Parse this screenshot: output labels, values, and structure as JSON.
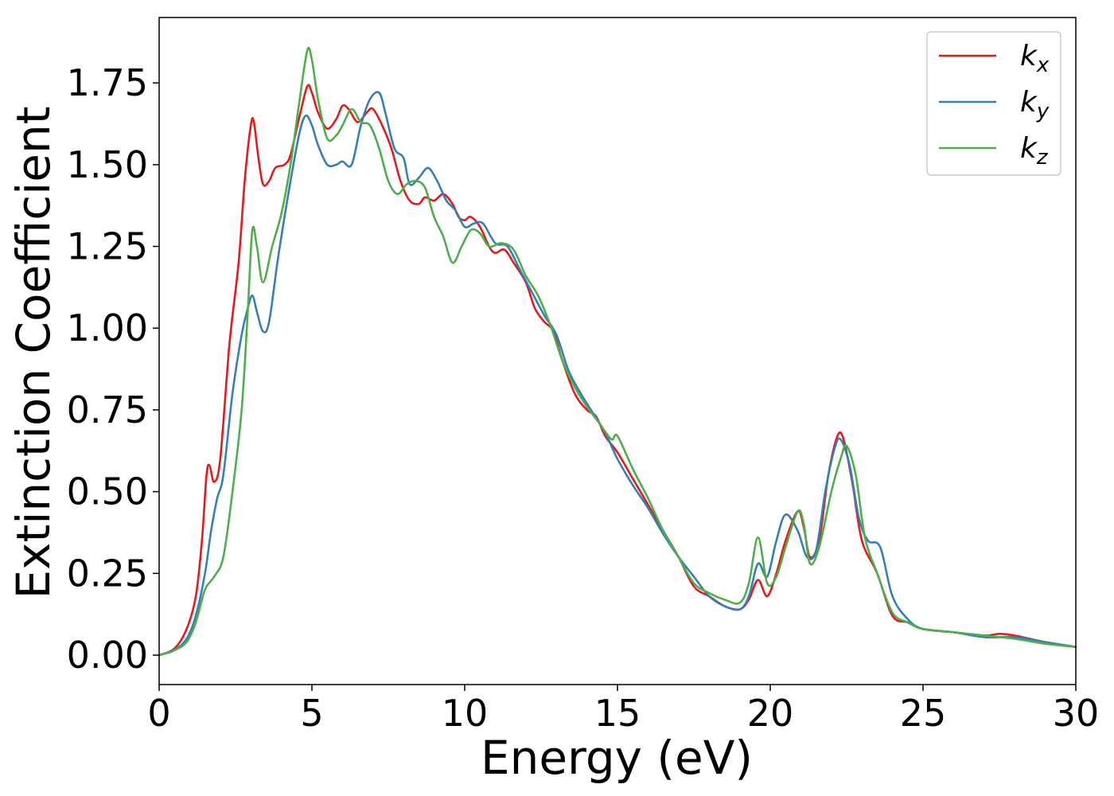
{
  "chart_data": {
    "type": "line",
    "xlabel": "Energy (eV)",
    "ylabel": "Extinction Coefficient",
    "xlim": [
      0,
      30
    ],
    "ylim": [
      -0.09,
      1.95
    ],
    "xticks": [
      0,
      5,
      10,
      15,
      20,
      25,
      30
    ],
    "xtick_labels": [
      "0",
      "5",
      "10",
      "15",
      "20",
      "25",
      "30"
    ],
    "yticks": [
      0.0,
      0.25,
      0.5,
      0.75,
      1.0,
      1.25,
      1.5,
      1.75
    ],
    "ytick_labels": [
      "0.00",
      "0.25",
      "0.50",
      "0.75",
      "1.00",
      "1.25",
      "1.50",
      "1.75"
    ],
    "grid": false,
    "legend_position": "top-right",
    "series": [
      {
        "name": "k",
        "subscript": "x",
        "color": "#e41a1c",
        "points": [
          [
            0,
            0.0
          ],
          [
            0.5,
            0.02
          ],
          [
            0.9,
            0.08
          ],
          [
            1.2,
            0.18
          ],
          [
            1.4,
            0.35
          ],
          [
            1.55,
            0.55
          ],
          [
            1.65,
            0.58
          ],
          [
            1.8,
            0.53
          ],
          [
            2.0,
            0.6
          ],
          [
            2.3,
            0.95
          ],
          [
            2.6,
            1.2
          ],
          [
            2.8,
            1.45
          ],
          [
            3.0,
            1.62
          ],
          [
            3.1,
            1.63
          ],
          [
            3.25,
            1.52
          ],
          [
            3.4,
            1.44
          ],
          [
            3.6,
            1.45
          ],
          [
            3.8,
            1.49
          ],
          [
            4.1,
            1.5
          ],
          [
            4.3,
            1.53
          ],
          [
            4.6,
            1.65
          ],
          [
            4.85,
            1.74
          ],
          [
            5.0,
            1.72
          ],
          [
            5.2,
            1.66
          ],
          [
            5.5,
            1.61
          ],
          [
            5.8,
            1.64
          ],
          [
            6.0,
            1.68
          ],
          [
            6.2,
            1.67
          ],
          [
            6.5,
            1.63
          ],
          [
            6.8,
            1.66
          ],
          [
            7.0,
            1.67
          ],
          [
            7.3,
            1.62
          ],
          [
            7.6,
            1.55
          ],
          [
            7.9,
            1.45
          ],
          [
            8.2,
            1.39
          ],
          [
            8.5,
            1.38
          ],
          [
            8.7,
            1.4
          ],
          [
            9.0,
            1.39
          ],
          [
            9.3,
            1.41
          ],
          [
            9.6,
            1.38
          ],
          [
            9.8,
            1.34
          ],
          [
            10.0,
            1.33
          ],
          [
            10.2,
            1.34
          ],
          [
            10.5,
            1.31
          ],
          [
            10.8,
            1.25
          ],
          [
            11.0,
            1.23
          ],
          [
            11.3,
            1.24
          ],
          [
            11.6,
            1.2
          ],
          [
            12.0,
            1.14
          ],
          [
            12.3,
            1.06
          ],
          [
            12.6,
            1.02
          ],
          [
            12.9,
            0.99
          ],
          [
            13.2,
            0.9
          ],
          [
            13.6,
            0.8
          ],
          [
            14.0,
            0.75
          ],
          [
            14.3,
            0.73
          ],
          [
            14.6,
            0.67
          ],
          [
            15.0,
            0.62
          ],
          [
            15.5,
            0.54
          ],
          [
            16.0,
            0.46
          ],
          [
            16.5,
            0.38
          ],
          [
            17.0,
            0.3
          ],
          [
            17.5,
            0.21
          ],
          [
            18.0,
            0.18
          ],
          [
            18.5,
            0.15
          ],
          [
            19.0,
            0.14
          ],
          [
            19.3,
            0.17
          ],
          [
            19.6,
            0.23
          ],
          [
            19.9,
            0.18
          ],
          [
            20.2,
            0.25
          ],
          [
            20.5,
            0.35
          ],
          [
            20.9,
            0.44
          ],
          [
            21.1,
            0.39
          ],
          [
            21.3,
            0.3
          ],
          [
            21.6,
            0.35
          ],
          [
            21.9,
            0.55
          ],
          [
            22.2,
            0.67
          ],
          [
            22.4,
            0.66
          ],
          [
            22.7,
            0.52
          ],
          [
            23.0,
            0.35
          ],
          [
            23.5,
            0.25
          ],
          [
            24.0,
            0.12
          ],
          [
            24.5,
            0.1
          ],
          [
            25.0,
            0.08
          ],
          [
            26.0,
            0.07
          ],
          [
            27.0,
            0.06
          ],
          [
            27.5,
            0.065
          ],
          [
            28.0,
            0.06
          ],
          [
            29.0,
            0.04
          ],
          [
            30.0,
            0.025
          ]
        ]
      },
      {
        "name": "k",
        "subscript": "y",
        "color": "#377eb8",
        "points": [
          [
            0,
            0.0
          ],
          [
            0.5,
            0.015
          ],
          [
            0.9,
            0.05
          ],
          [
            1.2,
            0.12
          ],
          [
            1.5,
            0.25
          ],
          [
            1.7,
            0.38
          ],
          [
            1.9,
            0.48
          ],
          [
            2.1,
            0.55
          ],
          [
            2.4,
            0.8
          ],
          [
            2.7,
            0.98
          ],
          [
            2.9,
            1.06
          ],
          [
            3.05,
            1.1
          ],
          [
            3.2,
            1.05
          ],
          [
            3.4,
            0.99
          ],
          [
            3.6,
            1.02
          ],
          [
            3.9,
            1.22
          ],
          [
            4.3,
            1.45
          ],
          [
            4.6,
            1.6
          ],
          [
            4.8,
            1.65
          ],
          [
            5.0,
            1.62
          ],
          [
            5.2,
            1.56
          ],
          [
            5.5,
            1.5
          ],
          [
            5.8,
            1.5
          ],
          [
            6.0,
            1.51
          ],
          [
            6.3,
            1.5
          ],
          [
            6.6,
            1.62
          ],
          [
            6.9,
            1.7
          ],
          [
            7.2,
            1.72
          ],
          [
            7.4,
            1.66
          ],
          [
            7.7,
            1.55
          ],
          [
            8.0,
            1.52
          ],
          [
            8.2,
            1.44
          ],
          [
            8.5,
            1.46
          ],
          [
            8.8,
            1.49
          ],
          [
            9.1,
            1.45
          ],
          [
            9.4,
            1.39
          ],
          [
            9.7,
            1.36
          ],
          [
            10.0,
            1.31
          ],
          [
            10.3,
            1.32
          ],
          [
            10.6,
            1.32
          ],
          [
            11.0,
            1.26
          ],
          [
            11.4,
            1.25
          ],
          [
            11.8,
            1.18
          ],
          [
            12.2,
            1.11
          ],
          [
            12.6,
            1.04
          ],
          [
            13.0,
            0.98
          ],
          [
            13.4,
            0.87
          ],
          [
            13.8,
            0.8
          ],
          [
            14.2,
            0.74
          ],
          [
            14.6,
            0.68
          ],
          [
            15.0,
            0.6
          ],
          [
            15.5,
            0.52
          ],
          [
            16.0,
            0.45
          ],
          [
            16.5,
            0.37
          ],
          [
            17.0,
            0.3
          ],
          [
            17.5,
            0.24
          ],
          [
            18.0,
            0.18
          ],
          [
            18.5,
            0.15
          ],
          [
            19.0,
            0.14
          ],
          [
            19.3,
            0.18
          ],
          [
            19.6,
            0.28
          ],
          [
            19.9,
            0.24
          ],
          [
            20.2,
            0.35
          ],
          [
            20.5,
            0.43
          ],
          [
            20.9,
            0.38
          ],
          [
            21.2,
            0.3
          ],
          [
            21.5,
            0.32
          ],
          [
            21.8,
            0.5
          ],
          [
            22.1,
            0.63
          ],
          [
            22.3,
            0.66
          ],
          [
            22.6,
            0.58
          ],
          [
            22.9,
            0.42
          ],
          [
            23.2,
            0.35
          ],
          [
            23.6,
            0.33
          ],
          [
            24.0,
            0.18
          ],
          [
            24.5,
            0.11
          ],
          [
            25.0,
            0.08
          ],
          [
            26.0,
            0.07
          ],
          [
            27.0,
            0.055
          ],
          [
            28.0,
            0.055
          ],
          [
            29.0,
            0.04
          ],
          [
            30.0,
            0.025
          ]
        ]
      },
      {
        "name": "k",
        "subscript": "z",
        "color": "#4daf4a",
        "points": [
          [
            0,
            0.0
          ],
          [
            0.5,
            0.015
          ],
          [
            0.9,
            0.04
          ],
          [
            1.2,
            0.1
          ],
          [
            1.5,
            0.2
          ],
          [
            1.8,
            0.24
          ],
          [
            2.1,
            0.3
          ],
          [
            2.4,
            0.5
          ],
          [
            2.7,
            0.75
          ],
          [
            2.9,
            1.05
          ],
          [
            3.05,
            1.3
          ],
          [
            3.2,
            1.25
          ],
          [
            3.4,
            1.14
          ],
          [
            3.7,
            1.25
          ],
          [
            4.0,
            1.35
          ],
          [
            4.3,
            1.5
          ],
          [
            4.6,
            1.7
          ],
          [
            4.85,
            1.85
          ],
          [
            5.0,
            1.82
          ],
          [
            5.2,
            1.7
          ],
          [
            5.5,
            1.58
          ],
          [
            5.8,
            1.59
          ],
          [
            6.0,
            1.62
          ],
          [
            6.3,
            1.67
          ],
          [
            6.6,
            1.63
          ],
          [
            6.9,
            1.62
          ],
          [
            7.2,
            1.55
          ],
          [
            7.5,
            1.45
          ],
          [
            7.8,
            1.41
          ],
          [
            8.1,
            1.44
          ],
          [
            8.4,
            1.45
          ],
          [
            8.7,
            1.43
          ],
          [
            9.0,
            1.34
          ],
          [
            9.3,
            1.28
          ],
          [
            9.6,
            1.2
          ],
          [
            9.9,
            1.25
          ],
          [
            10.2,
            1.3
          ],
          [
            10.5,
            1.29
          ],
          [
            10.8,
            1.25
          ],
          [
            11.2,
            1.26
          ],
          [
            11.6,
            1.24
          ],
          [
            12.0,
            1.16
          ],
          [
            12.4,
            1.1
          ],
          [
            12.8,
            1.01
          ],
          [
            13.2,
            0.9
          ],
          [
            13.6,
            0.82
          ],
          [
            14.0,
            0.76
          ],
          [
            14.4,
            0.71
          ],
          [
            14.8,
            0.66
          ],
          [
            15.0,
            0.67
          ],
          [
            15.5,
            0.57
          ],
          [
            16.0,
            0.48
          ],
          [
            16.5,
            0.38
          ],
          [
            17.0,
            0.3
          ],
          [
            17.5,
            0.22
          ],
          [
            18.0,
            0.19
          ],
          [
            18.5,
            0.17
          ],
          [
            19.0,
            0.16
          ],
          [
            19.3,
            0.22
          ],
          [
            19.6,
            0.36
          ],
          [
            19.9,
            0.22
          ],
          [
            20.2,
            0.24
          ],
          [
            20.5,
            0.33
          ],
          [
            20.9,
            0.44
          ],
          [
            21.1,
            0.4
          ],
          [
            21.3,
            0.28
          ],
          [
            21.6,
            0.33
          ],
          [
            22.0,
            0.5
          ],
          [
            22.3,
            0.6
          ],
          [
            22.5,
            0.64
          ],
          [
            22.8,
            0.55
          ],
          [
            23.1,
            0.36
          ],
          [
            23.5,
            0.25
          ],
          [
            24.0,
            0.13
          ],
          [
            24.5,
            0.1
          ],
          [
            25.0,
            0.08
          ],
          [
            26.0,
            0.07
          ],
          [
            27.0,
            0.06
          ],
          [
            28.0,
            0.05
          ],
          [
            29.0,
            0.035
          ],
          [
            30.0,
            0.025
          ]
        ]
      }
    ]
  }
}
